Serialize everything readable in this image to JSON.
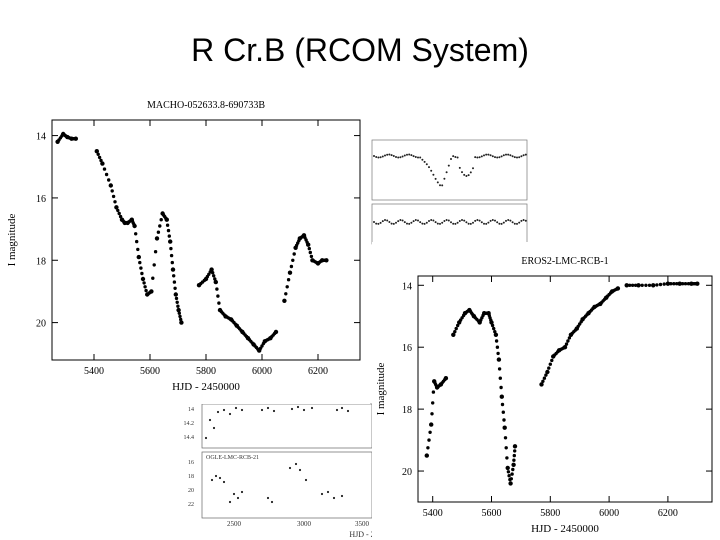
{
  "slide": {
    "title": "R Cr.B  (RCOM System)"
  },
  "chart_data": [
    {
      "type": "scatter",
      "title": "MACHO-052633.8-690733B",
      "xlabel": "HJD - 2450000",
      "ylabel": "I magnitude",
      "xlim": [
        5250,
        6350
      ],
      "ylim": [
        21.2,
        13.5
      ],
      "y_inverted": true,
      "xticks": [
        5400,
        5600,
        5800,
        6000,
        6200
      ],
      "yticks": [
        14,
        16,
        18,
        20
      ],
      "segments": [
        [
          [
            5270,
            14.2
          ],
          [
            5290,
            13.95
          ],
          [
            5305,
            14.05
          ],
          [
            5320,
            14.1
          ],
          [
            5335,
            14.1
          ]
        ],
        [
          [
            5410,
            14.5
          ],
          [
            5430,
            14.9
          ],
          [
            5460,
            15.6
          ],
          [
            5480,
            16.3
          ],
          [
            5500,
            16.7
          ],
          [
            5510,
            16.8
          ],
          [
            5520,
            16.8
          ],
          [
            5535,
            16.7
          ],
          [
            5545,
            16.9
          ],
          [
            5560,
            17.9
          ],
          [
            5575,
            18.6
          ],
          [
            5590,
            19.1
          ],
          [
            5605,
            19.0
          ],
          [
            5625,
            17.3
          ],
          [
            5645,
            16.5
          ],
          [
            5660,
            16.7
          ],
          [
            5672,
            17.4
          ],
          [
            5682,
            18.3
          ],
          [
            5692,
            19.1
          ],
          [
            5702,
            19.6
          ],
          [
            5712,
            20.0
          ]
        ],
        [
          [
            5775,
            18.8
          ],
          [
            5800,
            18.6
          ],
          [
            5820,
            18.3
          ],
          [
            5835,
            18.7
          ],
          [
            5850,
            19.6
          ],
          [
            5870,
            19.8
          ],
          [
            5890,
            19.9
          ],
          [
            5910,
            20.1
          ],
          [
            5930,
            20.3
          ],
          [
            5950,
            20.5
          ],
          [
            5970,
            20.7
          ],
          [
            5990,
            20.9
          ],
          [
            6010,
            20.6
          ],
          [
            6030,
            20.5
          ],
          [
            6050,
            20.3
          ]
        ],
        [
          [
            6080,
            19.3
          ],
          [
            6100,
            18.4
          ],
          [
            6120,
            17.6
          ],
          [
            6135,
            17.3
          ],
          [
            6150,
            17.2
          ],
          [
            6165,
            17.5
          ],
          [
            6180,
            18.0
          ],
          [
            6200,
            18.1
          ],
          [
            6215,
            18.0
          ],
          [
            6230,
            18.0
          ]
        ]
      ]
    },
    {
      "type": "scatter",
      "title": "EROS2-LMC-RCB-1",
      "xlabel": "HJD - 2450000",
      "ylabel": "I magnitude",
      "xlim": [
        5350,
        6350
      ],
      "ylim": [
        21,
        13.7
      ],
      "y_inverted": true,
      "xticks": [
        5400,
        5600,
        5800,
        6000,
        6200
      ],
      "yticks": [
        14,
        16,
        18,
        20
      ],
      "segments": [
        [
          [
            5380,
            19.5
          ],
          [
            5395,
            18.5
          ],
          [
            5405,
            17.1
          ],
          [
            5415,
            17.3
          ],
          [
            5428,
            17.2
          ],
          [
            5445,
            17.0
          ]
        ],
        [
          [
            5470,
            15.6
          ],
          [
            5490,
            15.2
          ],
          [
            5510,
            14.9
          ],
          [
            5525,
            14.8
          ],
          [
            5540,
            15.0
          ],
          [
            5560,
            15.2
          ],
          [
            5575,
            14.9
          ],
          [
            5590,
            14.9
          ],
          [
            5600,
            15.2
          ],
          [
            5615,
            15.6
          ],
          [
            5625,
            16.4
          ],
          [
            5635,
            17.6
          ],
          [
            5645,
            18.6
          ],
          [
            5655,
            19.9
          ],
          [
            5665,
            20.4
          ],
          [
            5675,
            19.8
          ],
          [
            5680,
            19.2
          ]
        ],
        [
          [
            5770,
            17.2
          ],
          [
            5790,
            16.8
          ],
          [
            5810,
            16.3
          ],
          [
            5830,
            16.1
          ],
          [
            5850,
            16.0
          ],
          [
            5870,
            15.6
          ],
          [
            5890,
            15.4
          ],
          [
            5910,
            15.1
          ],
          [
            5930,
            14.9
          ],
          [
            5950,
            14.7
          ],
          [
            5970,
            14.6
          ],
          [
            5990,
            14.4
          ],
          [
            6010,
            14.2
          ],
          [
            6030,
            14.1
          ]
        ],
        [
          [
            6060,
            14.0
          ],
          [
            6100,
            14.0
          ],
          [
            6150,
            14.0
          ],
          [
            6200,
            13.95
          ],
          [
            6240,
            13.95
          ],
          [
            6280,
            13.95
          ],
          [
            6300,
            13.95
          ]
        ]
      ]
    },
    {
      "type": "scatter",
      "title": "OGLE-LMC-RCB-21",
      "xlabel": "HJD - 2",
      "xticks": [
        "2500",
        "3000",
        "3500"
      ],
      "yticks_upper": [
        "14",
        "14.2",
        "14.4"
      ],
      "yticks_lower": [
        "16",
        "18",
        "20",
        "22"
      ]
    }
  ]
}
